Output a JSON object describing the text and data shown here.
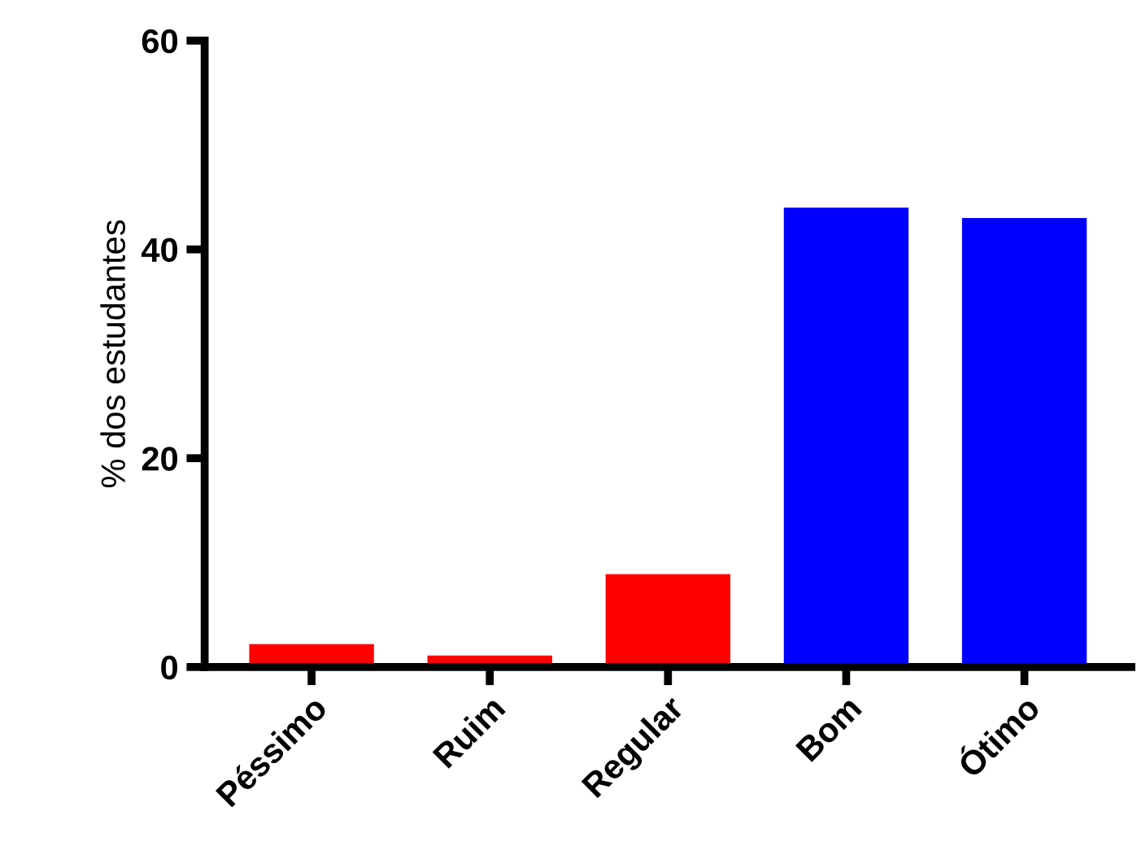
{
  "chart_data": {
    "type": "bar",
    "ylabel": "% dos estudantes",
    "categories": [
      "Péssimo",
      "Ruim",
      "Regular",
      "Bom",
      "Ótimo"
    ],
    "values": [
      2.2,
      1.1,
      8.9,
      44.0,
      43.0
    ],
    "colors": [
      "#ff0000",
      "#ff0000",
      "#ff0000",
      "#0000ff",
      "#0000ff"
    ],
    "ylim": [
      0,
      60
    ],
    "yticks": [
      0,
      20,
      40,
      60
    ],
    "grid": false
  }
}
